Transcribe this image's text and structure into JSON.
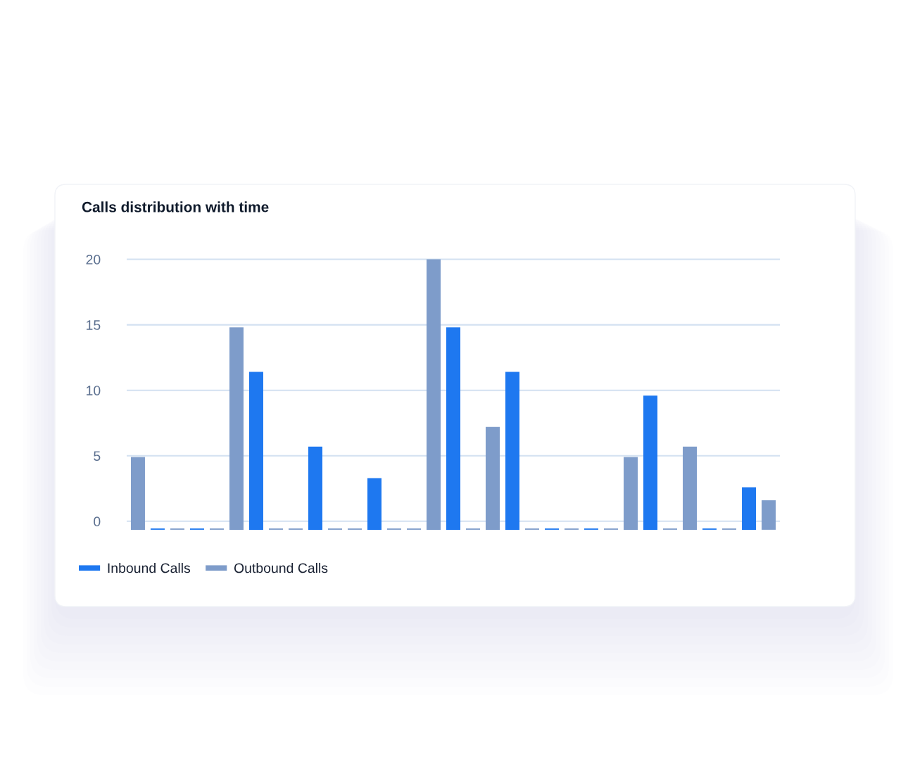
{
  "chart_data": {
    "type": "bar",
    "title": "Calls distribution with time",
    "categories": [
      null,
      null,
      null,
      null,
      null,
      null,
      null,
      null,
      null,
      null,
      null,
      null,
      null,
      null,
      null,
      null,
      null,
      null,
      null,
      null,
      null,
      null,
      null,
      null,
      null,
      null,
      null,
      null,
      null,
      null,
      null,
      null,
      null
    ],
    "series": [
      {
        "name": "Inbound Calls",
        "color": "#1e78f0",
        "values": [
          null,
          0.1,
          null,
          0.1,
          null,
          null,
          12.05,
          null,
          null,
          6.35,
          null,
          null,
          3.95,
          null,
          null,
          null,
          15.45,
          null,
          null,
          12.05,
          null,
          0.1,
          null,
          0.1,
          null,
          null,
          10.25,
          null,
          null,
          0.1,
          null,
          3.25,
          null
        ],
        "base": [
          null,
          -0.65,
          null,
          -0.65,
          null,
          null,
          -0.65,
          null,
          null,
          -0.65,
          null,
          null,
          -0.65,
          null,
          null,
          null,
          -0.65,
          null,
          null,
          -0.65,
          null,
          -0.65,
          null,
          -0.65,
          null,
          null,
          -0.65,
          null,
          null,
          -0.65,
          null,
          -0.65,
          null
        ]
      },
      {
        "name": "Outbound Calls",
        "color": "#7e9cca",
        "values": [
          5.55,
          null,
          0.1,
          null,
          0.1,
          15.45,
          null,
          0.1,
          0.1,
          null,
          0.1,
          0.1,
          null,
          0.1,
          0.1,
          20.65,
          null,
          0.1,
          7.85,
          null,
          0.1,
          null,
          0.1,
          null,
          0.1,
          5.55,
          null,
          0.1,
          6.35,
          null,
          0.1,
          null,
          2.25
        ],
        "base": [
          -0.65,
          null,
          -0.65,
          null,
          -0.65,
          -0.65,
          null,
          -0.65,
          -0.65,
          null,
          -0.65,
          -0.65,
          null,
          -0.65,
          -0.65,
          -0.65,
          null,
          -0.65,
          -0.65,
          null,
          -0.65,
          null,
          -0.65,
          null,
          -0.65,
          -0.65,
          null,
          -0.65,
          -0.65,
          null,
          -0.65,
          null,
          -0.65
        ]
      }
    ],
    "ylim": [
      -0.65,
      20.1
    ],
    "yticks": [
      0,
      5,
      10,
      15,
      20
    ],
    "grid": "y",
    "legend": "bottom left"
  }
}
